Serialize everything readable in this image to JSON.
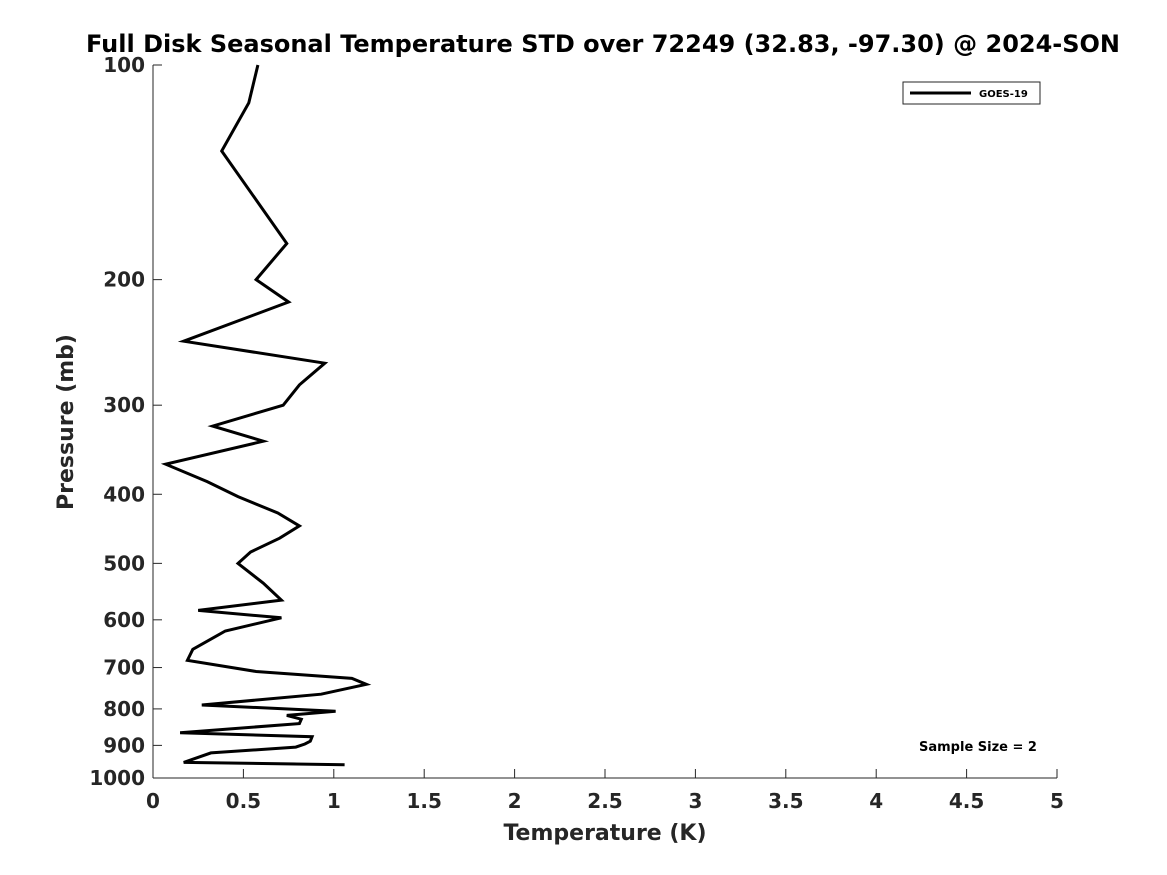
{
  "chart_data": {
    "type": "line",
    "title": "Full Disk Seasonal Temperature STD over 72249 (32.83, -97.30) @ 2024-SON",
    "xlabel": "Temperature (K)",
    "ylabel": "Pressure (mb)",
    "xlim": [
      0,
      5
    ],
    "ylim": [
      100,
      1000
    ],
    "y_scale": "log",
    "y_reversed": true,
    "x_ticks": [
      "0",
      "0.5",
      "1",
      "1.5",
      "2",
      "2.5",
      "3",
      "3.5",
      "4",
      "4.5",
      "5"
    ],
    "y_ticks": [
      "100",
      "200",
      "300",
      "400",
      "500",
      "600",
      "700",
      "800",
      "900",
      "1000"
    ],
    "grid": false,
    "legend_position": "top-right",
    "annotation": "Sample Size = 2",
    "series": [
      {
        "name": "GOES-19",
        "color": "#000000",
        "x": [
          0.58,
          0.53,
          0.38,
          0.74,
          0.57,
          0.75,
          0.17,
          0.95,
          0.81,
          0.72,
          0.33,
          0.61,
          0.07,
          0.3,
          0.47,
          0.69,
          0.81,
          0.7,
          0.54,
          0.47,
          0.61,
          0.71,
          0.25,
          0.71,
          0.4,
          0.22,
          0.19,
          0.57,
          1.1,
          1.18,
          0.93,
          0.27,
          1.01,
          0.74,
          0.82,
          0.81,
          0.15,
          0.88,
          0.87,
          0.84,
          0.79,
          0.32,
          0.17,
          1.06
        ],
        "y": [
          100,
          113,
          132,
          178,
          200,
          215,
          244,
          262,
          281,
          300,
          321,
          337,
          363,
          384,
          403,
          425,
          443,
          461,
          482,
          500,
          533,
          563,
          582,
          596,
          622,
          660,
          684,
          709,
          725,
          739,
          763,
          790,
          806,
          817,
          827,
          839,
          864,
          875,
          888,
          896,
          905,
          922,
          951,
          958
        ]
      }
    ]
  }
}
